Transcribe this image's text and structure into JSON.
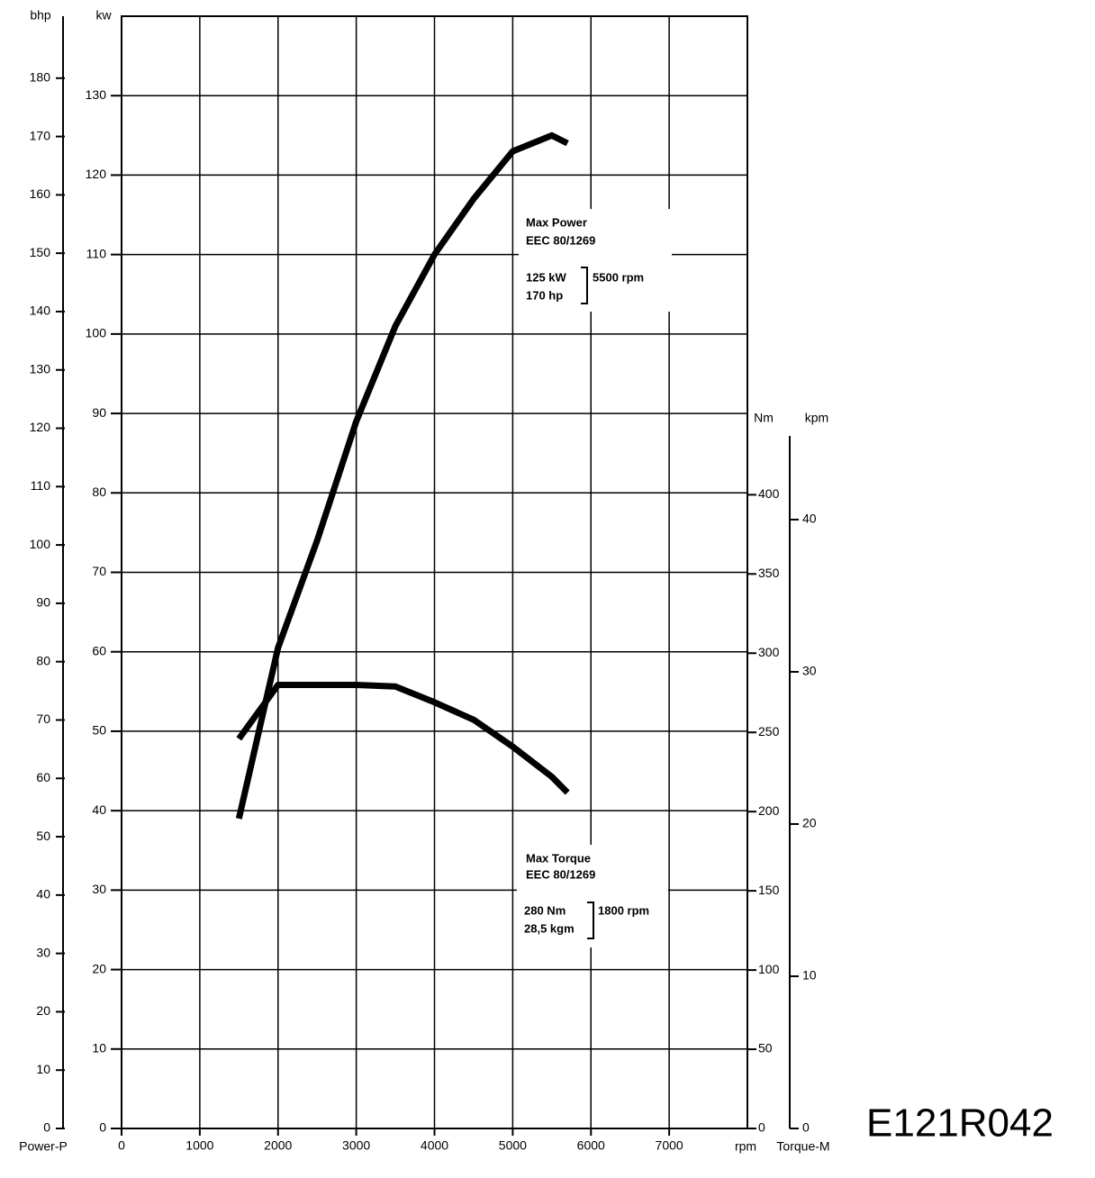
{
  "chart_data": {
    "type": "line",
    "code": "E121R042",
    "xlabel": "rpm",
    "xlim": [
      0,
      8000
    ],
    "xticks": [
      0,
      1000,
      2000,
      3000,
      4000,
      5000,
      6000,
      7000
    ],
    "ylabel": "kw",
    "ylim": [
      0,
      140
    ],
    "yticks": [
      0,
      10,
      20,
      30,
      40,
      50,
      60,
      70,
      80,
      90,
      100,
      110,
      120,
      130
    ],
    "y3label": "bhp",
    "y3title": "Power-P",
    "y3lim": [
      0,
      190
    ],
    "y3ticks": [
      0,
      10,
      20,
      30,
      40,
      50,
      60,
      70,
      80,
      90,
      100,
      110,
      120,
      130,
      140,
      150,
      160,
      170,
      180
    ],
    "y2label": "Nm",
    "y2title": "Torque-M",
    "y2lim": [
      0,
      440
    ],
    "y2ticks": [
      0,
      50,
      100,
      150,
      200,
      250,
      300,
      350,
      400
    ],
    "y4label": "kpm",
    "y4lim": [
      0,
      45.5
    ],
    "y4ticks": [
      0,
      10,
      20,
      30,
      40
    ],
    "grid": true,
    "x": [
      1500,
      2000,
      2500,
      3000,
      3500,
      4000,
      4500,
      5000,
      5500,
      5700
    ],
    "series": [
      {
        "color": "#000000",
        "values": [
          39,
          60.5,
          74,
          89,
          101,
          110,
          117,
          123,
          125,
          124
        ]
      },
      {
        "color": "#000000",
        "axis": "y2",
        "values": [
          246,
          280,
          280,
          280,
          279,
          269,
          258,
          241,
          222,
          212
        ]
      }
    ],
    "annotations": {
      "power": {
        "title": "Max Power",
        "standard": "EEC 80/1269",
        "kw": "125 kW",
        "hp": "170 hp",
        "rpm": "5500 rpm"
      },
      "torque": {
        "title": "Max Torque",
        "standard": "EEC 80/1269",
        "nm": "280 Nm",
        "kgm": "28,5 kgm",
        "rpm": "1800 rpm"
      }
    }
  }
}
